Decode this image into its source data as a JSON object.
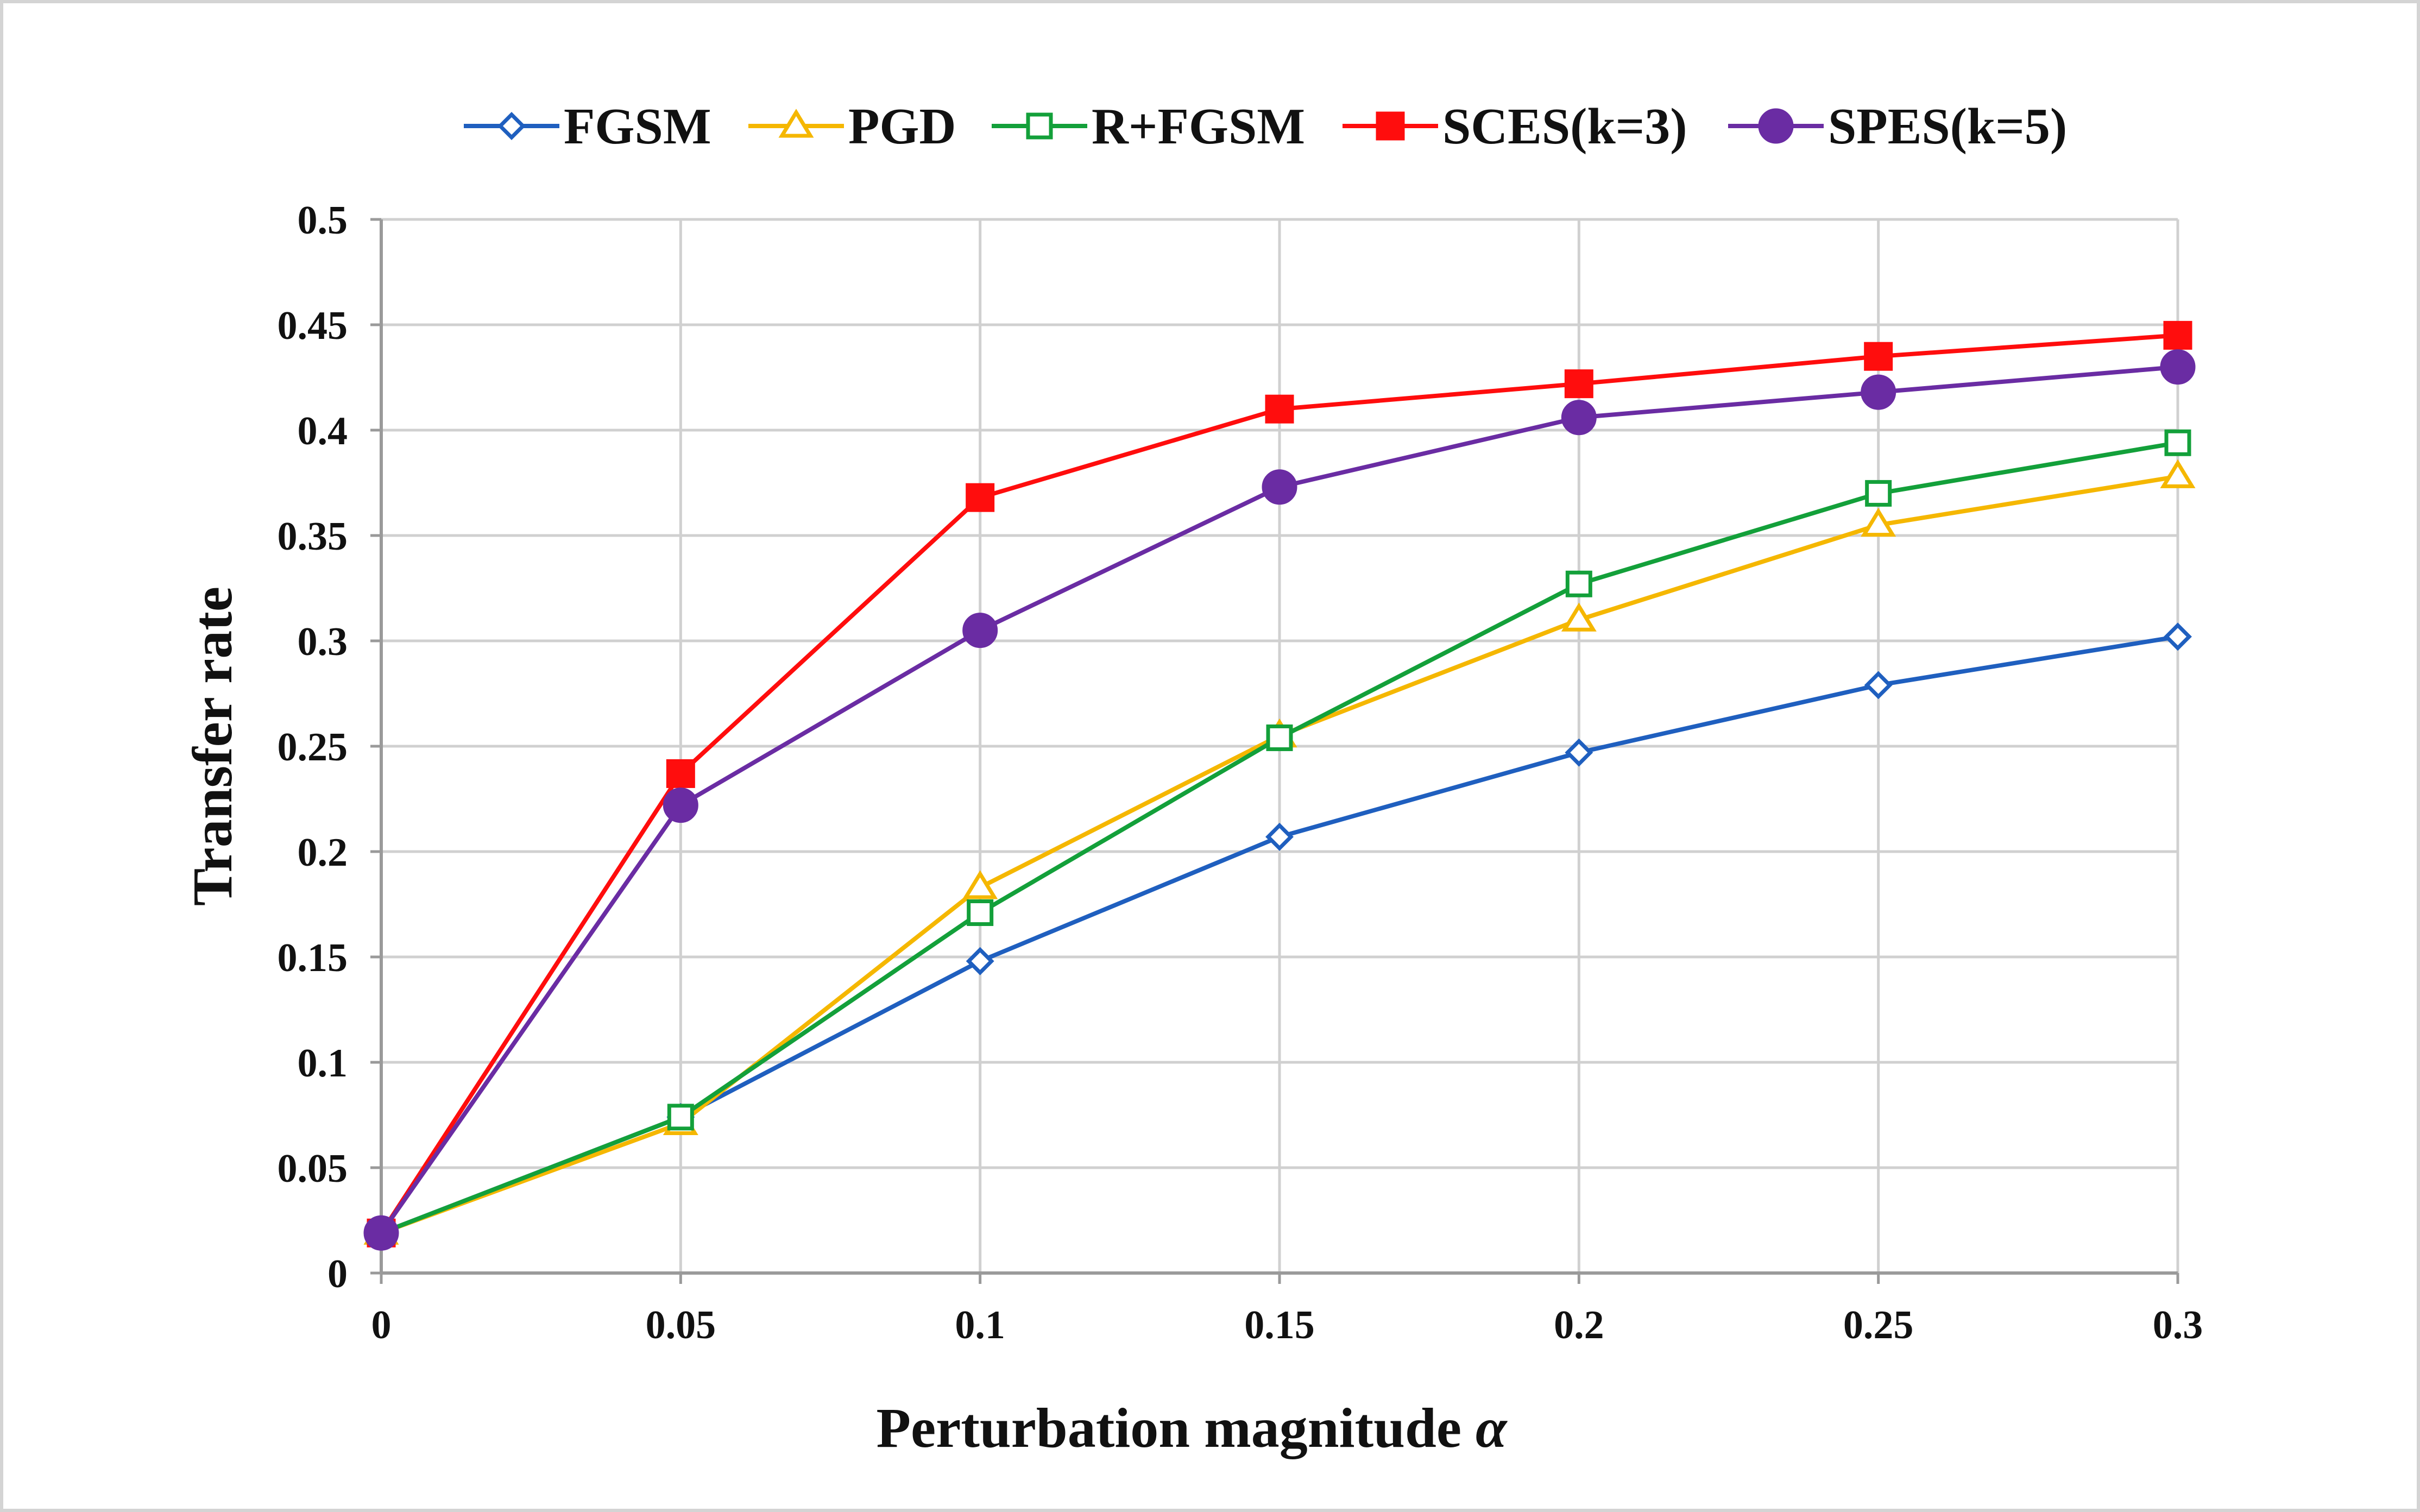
{
  "chart_data": {
    "type": "line",
    "title": "",
    "xlabel": "Perturbation magnitude ",
    "xlabel_symbol": "α",
    "ylabel": "Transfer rate",
    "x": [
      0,
      0.05,
      0.1,
      0.15,
      0.2,
      0.25,
      0.3
    ],
    "x_tick_labels": [
      "0",
      "0.05",
      "0.1",
      "0.15",
      "0.2",
      "0.25",
      "0.3"
    ],
    "y_tick_labels": [
      "0",
      "0.05",
      "0.1",
      "0.15",
      "0.2",
      "0.25",
      "0.3",
      "0.35",
      "0.4",
      "0.45",
      "0.5"
    ],
    "xlim": [
      0,
      0.3
    ],
    "ylim": [
      0,
      0.5
    ],
    "grid": true,
    "legend_position": "top",
    "series": [
      {
        "name": "FGSM",
        "color": "#1f5fbf",
        "marker": "diamond-open",
        "values": [
          0.019,
          0.074,
          0.148,
          0.207,
          0.247,
          0.279,
          0.302
        ]
      },
      {
        "name": "PGD",
        "color": "#f5b700",
        "marker": "triangle-open",
        "values": [
          0.019,
          0.071,
          0.183,
          0.255,
          0.31,
          0.355,
          0.378
        ]
      },
      {
        "name": "R+FGSM",
        "color": "#13a03a",
        "marker": "square-open",
        "values": [
          0.019,
          0.074,
          0.171,
          0.254,
          0.327,
          0.37,
          0.394
        ]
      },
      {
        "name": "SCES(k=3)",
        "color": "#ff0d0d",
        "marker": "square-filled",
        "values": [
          0.019,
          0.237,
          0.368,
          0.41,
          0.422,
          0.435,
          0.445
        ]
      },
      {
        "name": "SPES(k=5)",
        "color": "#6a2ca3",
        "marker": "circle-filled",
        "values": [
          0.019,
          0.222,
          0.305,
          0.373,
          0.406,
          0.418,
          0.43
        ]
      }
    ]
  }
}
